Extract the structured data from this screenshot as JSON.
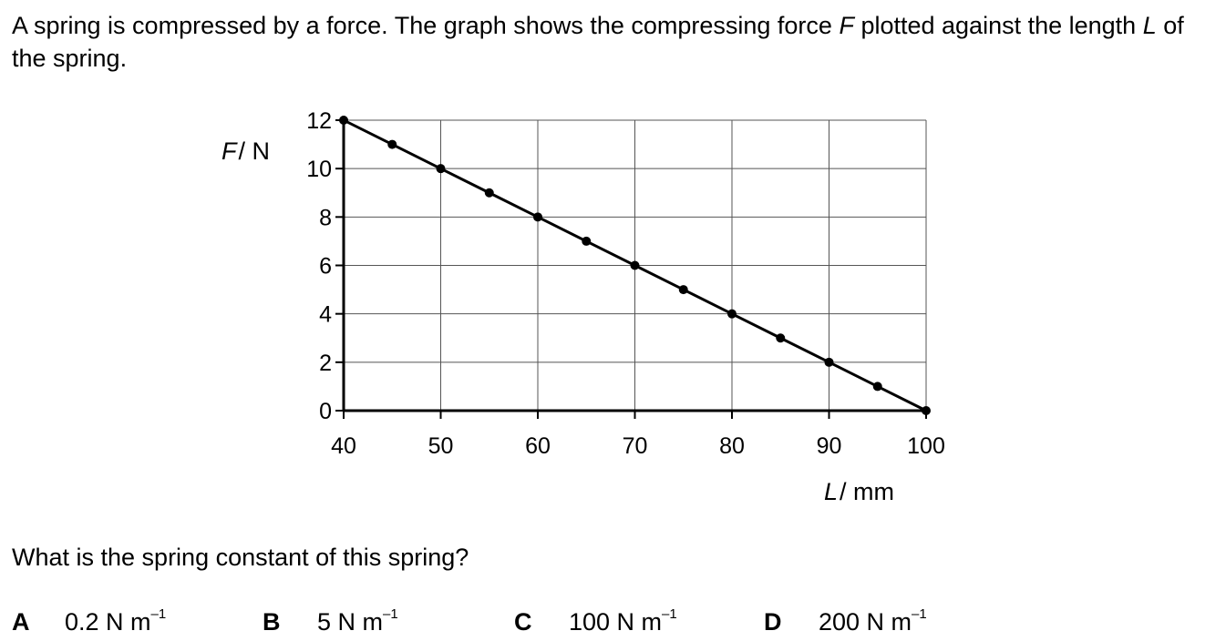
{
  "intro": {
    "part1": "A spring is compressed by a force. The graph shows the compressing force ",
    "var1": "F",
    "part2": " plotted against the length ",
    "var2": "L",
    "part3": " of the spring."
  },
  "chart_data": {
    "type": "line",
    "title": "",
    "ylabel_var": "F",
    "ylabel_unit": "/ N",
    "xlabel_var": "L",
    "xlabel_unit": "/ mm",
    "xlim": [
      40,
      100
    ],
    "ylim": [
      0,
      12
    ],
    "grid": true,
    "x_ticks": [
      "40",
      "50",
      "60",
      "70",
      "80",
      "90",
      "100"
    ],
    "y_ticks": [
      "0",
      "2",
      "4",
      "6",
      "8",
      "10",
      "12"
    ],
    "series": [
      {
        "x": [
          40,
          45,
          50,
          55,
          60,
          65,
          70,
          75,
          80,
          85,
          90,
          95,
          100
        ],
        "y": [
          12,
          11,
          10,
          9,
          8,
          7,
          6,
          5,
          4,
          3,
          2,
          1,
          0
        ]
      }
    ]
  },
  "question": "What is the spring constant of this spring?",
  "options": [
    {
      "letter": "A",
      "value": "0.2 N m",
      "exp": "–1"
    },
    {
      "letter": "B",
      "value": "5 N m",
      "exp": "–1"
    },
    {
      "letter": "C",
      "value": "100 N m",
      "exp": "–1"
    },
    {
      "letter": "D",
      "value": "200 N m",
      "exp": "–1"
    }
  ]
}
